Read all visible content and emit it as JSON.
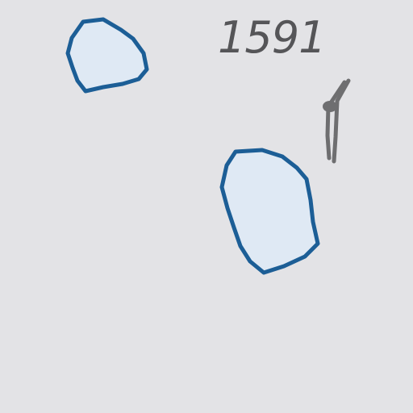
{
  "map": {
    "elevation_label": "1591",
    "colors": {
      "background": "#e3e3e6",
      "water_fill": "#dfe9f4",
      "water_outline": "#1c5e96",
      "feature_gray": "#6e6e70",
      "label_text": "#555558"
    },
    "features": [
      {
        "kind": "lake",
        "name": "small-lake"
      },
      {
        "kind": "lake",
        "name": "large-lake"
      },
      {
        "kind": "symbol",
        "name": "landmark-marker-icon"
      }
    ]
  }
}
